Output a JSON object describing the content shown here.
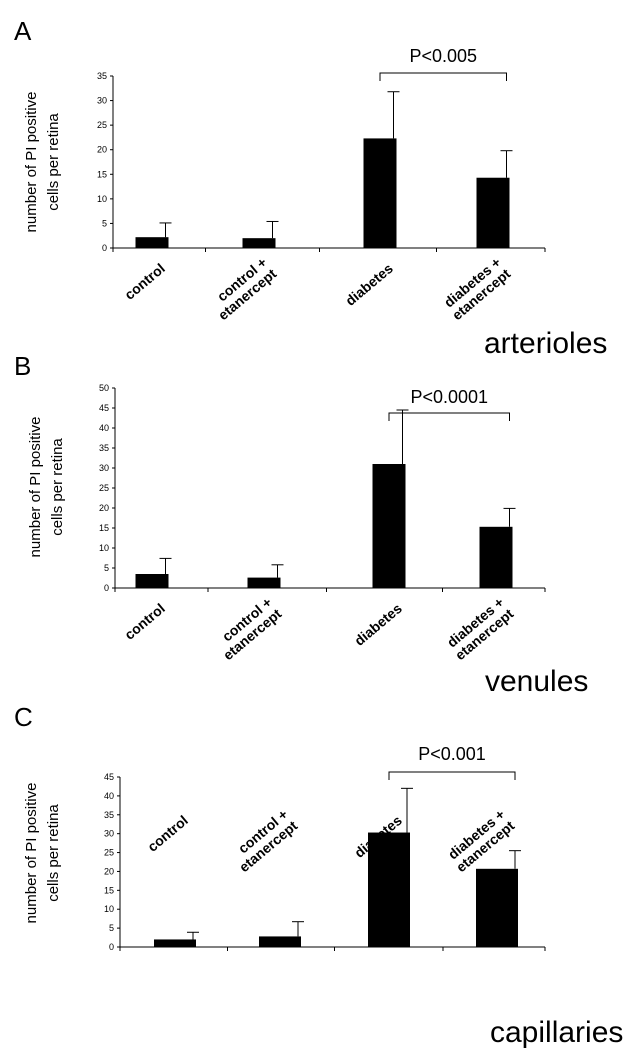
{
  "chart_data": [
    {
      "type": "bar",
      "panel": "A",
      "vessel": "arterioles",
      "ylabel": [
        "number of PI positive",
        "cells per retina"
      ],
      "categories": [
        [
          "control"
        ],
        [
          "control +",
          "etanercept"
        ],
        [
          "diabetes"
        ],
        [
          "diabetes +",
          "etanercept"
        ]
      ],
      "values": [
        2.2,
        2.0,
        22.3,
        14.3
      ],
      "errors": [
        2.9,
        3.4,
        9.5,
        5.5
      ],
      "ylim": [
        0,
        35
      ],
      "yticks": [
        0,
        5,
        10,
        15,
        20,
        25,
        30,
        35
      ],
      "significance": {
        "from": 2,
        "to": 3,
        "label": "P<0.005"
      }
    },
    {
      "type": "bar",
      "panel": "B",
      "vessel": "venules",
      "ylabel": [
        "number of PI positive",
        "cells per retina"
      ],
      "categories": [
        [
          "control"
        ],
        [
          "control +",
          "etanercept"
        ],
        [
          "diabetes"
        ],
        [
          "diabetes +",
          "etanercept"
        ]
      ],
      "values": [
        3.5,
        2.6,
        31.0,
        15.3
      ],
      "errors": [
        3.9,
        3.2,
        13.5,
        4.6
      ],
      "ylim": [
        0,
        50
      ],
      "yticks": [
        0,
        5,
        10,
        15,
        20,
        25,
        30,
        35,
        40,
        45,
        50
      ],
      "significance": {
        "from": 2,
        "to": 3,
        "label": "P<0.0001"
      }
    },
    {
      "type": "bar",
      "panel": "C",
      "vessel": "capillaries",
      "ylabel": [
        "number of PI positive",
        "cells per retina"
      ],
      "categories": [
        [
          "control"
        ],
        [
          "control +",
          "etanercept"
        ],
        [
          "diabetes"
        ],
        [
          "diabetes +",
          "etanercept"
        ]
      ],
      "values": [
        2.0,
        2.8,
        30.3,
        20.7
      ],
      "errors": [
        1.9,
        3.9,
        11.7,
        4.8
      ],
      "ylim": [
        0,
        45
      ],
      "yticks": [
        0,
        5,
        10,
        15,
        20,
        25,
        30,
        35,
        40,
        45
      ],
      "significance": {
        "from": 2,
        "to": 3,
        "label": "P<0.001"
      }
    }
  ]
}
